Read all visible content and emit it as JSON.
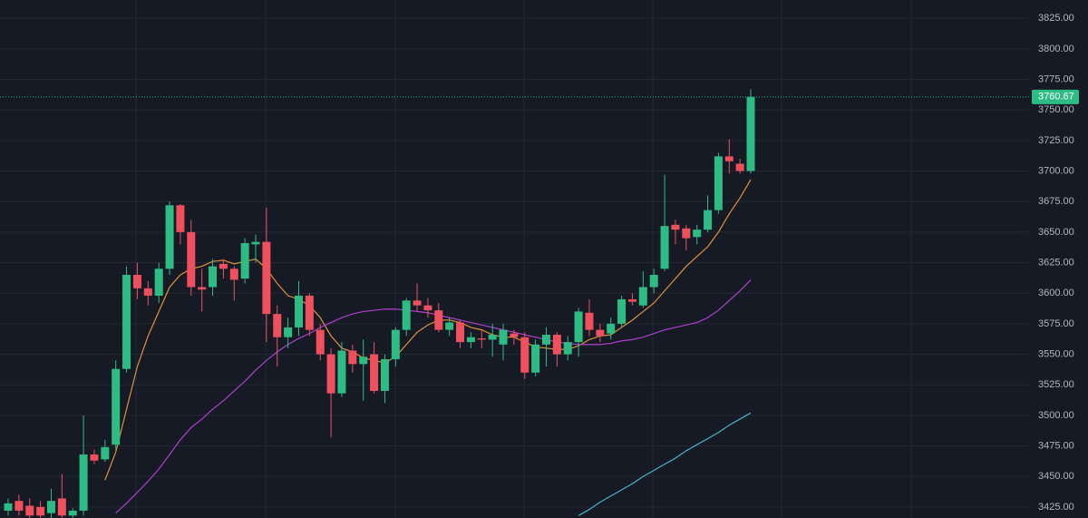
{
  "chart_data": {
    "type": "candlestick",
    "up_color": "#2dbd84",
    "down_color": "#f0505e",
    "open": [
      3422,
      3430,
      3426,
      3425,
      3420,
      3432,
      3418,
      3422,
      3468,
      3464,
      3476,
      3538,
      3615,
      3604,
      3598,
      3620,
      3672,
      3650,
      3605,
      3605,
      3624,
      3620,
      3612,
      3640,
      3642,
      3583,
      3564,
      3572,
      3598,
      3570,
      3550,
      3518,
      3553,
      3542,
      3550,
      3520,
      3546,
      3570,
      3594,
      3590,
      3586,
      3570,
      3576,
      3560,
      3563,
      3562,
      3558,
      3567,
      3564,
      3535,
      3558,
      3566,
      3550,
      3560,
      3584,
      3570,
      3567,
      3575,
      3595,
      3590,
      3605,
      3620,
      3656,
      3653,
      3646,
      3652,
      3668,
      3712,
      3706,
      3700
    ],
    "high": [
      3432,
      3435,
      3432,
      3430,
      3440,
      3452,
      3424,
      3500,
      3472,
      3480,
      3545,
      3622,
      3625,
      3610,
      3625,
      3675,
      3673,
      3660,
      3620,
      3628,
      3628,
      3622,
      3645,
      3648,
      3670,
      3590,
      3580,
      3610,
      3600,
      3575,
      3555,
      3560,
      3558,
      3562,
      3560,
      3550,
      3572,
      3596,
      3608,
      3596,
      3592,
      3580,
      3578,
      3568,
      3570,
      3575,
      3575,
      3570,
      3568,
      3562,
      3572,
      3568,
      3565,
      3588,
      3595,
      3575,
      3580,
      3598,
      3600,
      3618,
      3620,
      3697,
      3660,
      3656,
      3656,
      3680,
      3715,
      3726,
      3710,
      3767
    ],
    "low": [
      3418,
      3418,
      3416,
      3416,
      3416,
      3416,
      3416,
      3418,
      3460,
      3462,
      3472,
      3535,
      3595,
      3590,
      3592,
      3615,
      3640,
      3598,
      3585,
      3598,
      3612,
      3594,
      3608,
      3625,
      3560,
      3540,
      3555,
      3565,
      3565,
      3545,
      3482,
      3515,
      3535,
      3512,
      3518,
      3510,
      3540,
      3565,
      3585,
      3580,
      3568,
      3565,
      3555,
      3555,
      3555,
      3548,
      3545,
      3558,
      3530,
      3532,
      3540,
      3540,
      3545,
      3548,
      3565,
      3560,
      3562,
      3572,
      3590,
      3588,
      3600,
      3618,
      3640,
      3635,
      3640,
      3650,
      3665,
      3698,
      3698,
      3698
    ],
    "close": [
      3428,
      3422,
      3418,
      3418,
      3430,
      3418,
      3422,
      3468,
      3463,
      3474,
      3538,
      3615,
      3604,
      3598,
      3620,
      3672,
      3650,
      3605,
      3603,
      3622,
      3620,
      3611,
      3641,
      3642,
      3583,
      3564,
      3572,
      3598,
      3570,
      3550,
      3518,
      3553,
      3542,
      3548,
      3520,
      3546,
      3570,
      3594,
      3590,
      3586,
      3570,
      3576,
      3560,
      3564,
      3562,
      3566,
      3570,
      3564,
      3535,
      3558,
      3566,
      3550,
      3560,
      3585,
      3570,
      3565,
      3575,
      3595,
      3593,
      3605,
      3615,
      3655,
      3652,
      3645,
      3652,
      3668,
      3712,
      3708,
      3700,
      3760.67
    ],
    "lines": [
      {
        "color": "#e0913a",
        "values": [
          null,
          null,
          null,
          null,
          null,
          null,
          null,
          null,
          null,
          3447,
          3470,
          3505,
          3540,
          3565,
          3585,
          3605,
          3615,
          3620,
          3622,
          3626,
          3627,
          3624,
          3626,
          3628,
          3620,
          3608,
          3598,
          3595,
          3590,
          3580,
          3565,
          3555,
          3552,
          3547,
          3545,
          3543,
          3548,
          3558,
          3568,
          3574,
          3578,
          3578,
          3576,
          3572,
          3570,
          3566,
          3564,
          3564,
          3560,
          3556,
          3555,
          3554,
          3554,
          3557,
          3562,
          3565,
          3566,
          3572,
          3578,
          3585,
          3592,
          3602,
          3612,
          3622,
          3630,
          3638,
          3650,
          3665,
          3678,
          3693
        ]
      },
      {
        "color": "#b03fcf",
        "values": [
          null,
          null,
          null,
          null,
          null,
          null,
          null,
          null,
          null,
          null,
          3420,
          3428,
          3437,
          3446,
          3456,
          3468,
          3480,
          3490,
          3497,
          3505,
          3512,
          3520,
          3528,
          3537,
          3545,
          3552,
          3558,
          3563,
          3567,
          3572,
          3576,
          3580,
          3583,
          3585,
          3586,
          3587,
          3587,
          3586,
          3585,
          3584,
          3582,
          3580,
          3578,
          3576,
          3574,
          3572,
          3570,
          3568,
          3566,
          3564,
          3562,
          3560,
          3559,
          3558,
          3558,
          3558,
          3559,
          3561,
          3562,
          3564,
          3567,
          3570,
          3572,
          3574,
          3576,
          3580,
          3586,
          3594,
          3602,
          3611
        ]
      },
      {
        "color": "#3fb6c4",
        "values": [
          null,
          null,
          null,
          null,
          null,
          null,
          null,
          null,
          null,
          null,
          null,
          null,
          null,
          null,
          null,
          null,
          null,
          null,
          null,
          null,
          null,
          null,
          null,
          null,
          null,
          null,
          null,
          null,
          null,
          null,
          null,
          null,
          null,
          null,
          null,
          null,
          null,
          null,
          null,
          null,
          null,
          null,
          null,
          null,
          null,
          null,
          null,
          null,
          null,
          null,
          null,
          null,
          null,
          3418,
          3423,
          3429,
          3434,
          3439,
          3444,
          3450,
          3455,
          3460,
          3465,
          3471,
          3476,
          3481,
          3486,
          3492,
          3497,
          3502
        ]
      }
    ],
    "ylim": [
      3416,
      3840
    ],
    "yticks": [
      {
        "value": 3425,
        "label": "3425.00"
      },
      {
        "value": 3450,
        "label": "3450.00"
      },
      {
        "value": 3475,
        "label": "3475.00"
      },
      {
        "value": 3500,
        "label": "3500.00"
      },
      {
        "value": 3525,
        "label": "3525.00"
      },
      {
        "value": 3550,
        "label": "3550.00"
      },
      {
        "value": 3575,
        "label": "3575.00"
      },
      {
        "value": 3600,
        "label": "3600.00"
      },
      {
        "value": 3625,
        "label": "3625.00"
      },
      {
        "value": 3650,
        "label": "3650.00"
      },
      {
        "value": 3675,
        "label": "3675.00"
      },
      {
        "value": 3700,
        "label": "3700.00"
      },
      {
        "value": 3725,
        "label": "3725.00"
      },
      {
        "value": 3750,
        "label": "3750.00"
      },
      {
        "value": 3775,
        "label": "3775.00"
      },
      {
        "value": 3800,
        "label": "3800.00"
      },
      {
        "value": 3825,
        "label": "3825.00"
      }
    ],
    "grid": true
  }
}
